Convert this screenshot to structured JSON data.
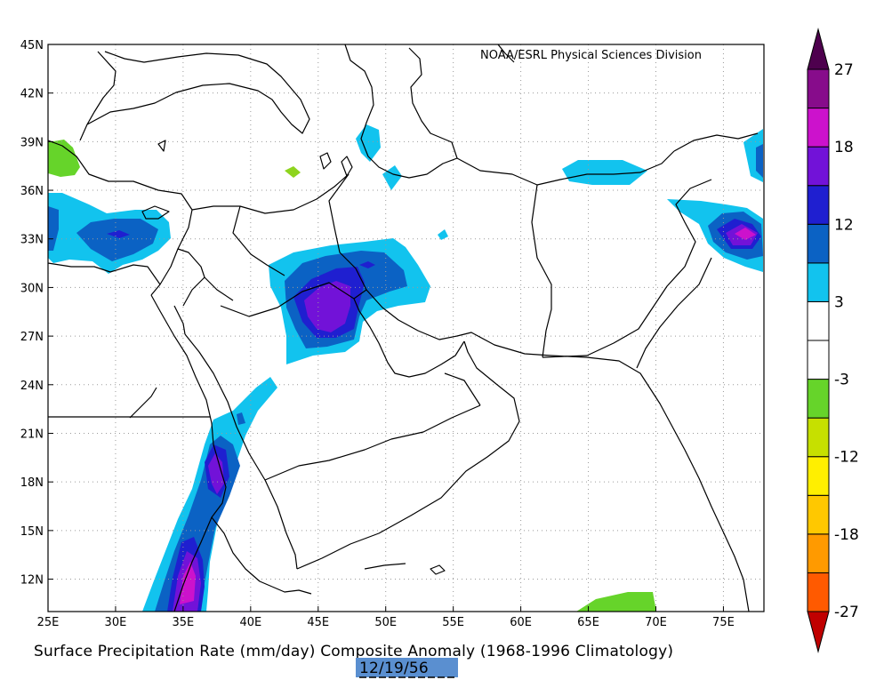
{
  "caption": "Surface Precipitation Rate (mm/day) Composite Anomaly (1968-1996 Climatology)",
  "date_label": "12/19/56",
  "credit": "NOAA/ESRL Physical Sciences Division",
  "map": {
    "lon_range": [
      25,
      78
    ],
    "lat_range": [
      10,
      45
    ],
    "lon_ticks": [
      {
        "value": 25,
        "label": "25E"
      },
      {
        "value": 30,
        "label": "30E"
      },
      {
        "value": 35,
        "label": "35E"
      },
      {
        "value": 40,
        "label": "40E"
      },
      {
        "value": 45,
        "label": "45E"
      },
      {
        "value": 50,
        "label": "50E"
      },
      {
        "value": 55,
        "label": "55E"
      },
      {
        "value": 60,
        "label": "60E"
      },
      {
        "value": 65,
        "label": "65E"
      },
      {
        "value": 70,
        "label": "70E"
      },
      {
        "value": 75,
        "label": "75E"
      }
    ],
    "lat_ticks": [
      {
        "value": 45,
        "label": "45N"
      },
      {
        "value": 42,
        "label": "42N"
      },
      {
        "value": 39,
        "label": "39N"
      },
      {
        "value": 36,
        "label": "36N"
      },
      {
        "value": 33,
        "label": "33N"
      },
      {
        "value": 30,
        "label": "30N"
      },
      {
        "value": 27,
        "label": "27N"
      },
      {
        "value": 24,
        "label": "24N"
      },
      {
        "value": 21,
        "label": "21N"
      },
      {
        "value": 18,
        "label": "18N"
      },
      {
        "value": 15,
        "label": "15N"
      },
      {
        "value": 12,
        "label": "12N"
      }
    ],
    "grid": true
  },
  "colorbar": {
    "labels": [
      "27",
      "18",
      "12",
      "3",
      "-3",
      "-12",
      "-18",
      "-27"
    ],
    "colors": [
      "#c00000",
      "#ff5a00",
      "#ff9a00",
      "#ffc800",
      "#ffef00",
      "#c6e000",
      "#66d42a",
      "#ffffff",
      "#ffffff",
      "#12c3ee",
      "#0b62c4",
      "#1f1fd0",
      "#7212d8",
      "#cc12cc",
      "#870c8b",
      "#4e004e"
    ]
  },
  "colors": {
    "light_blue": "#12c3ee",
    "mid_blue": "#0b62c4",
    "dark_blue": "#1f1fd0",
    "purple": "#7212d8",
    "magenta": "#cc12cc",
    "green": "#66d42a",
    "lime": "#8ed41e",
    "date_bg": "#5a8fd0"
  }
}
